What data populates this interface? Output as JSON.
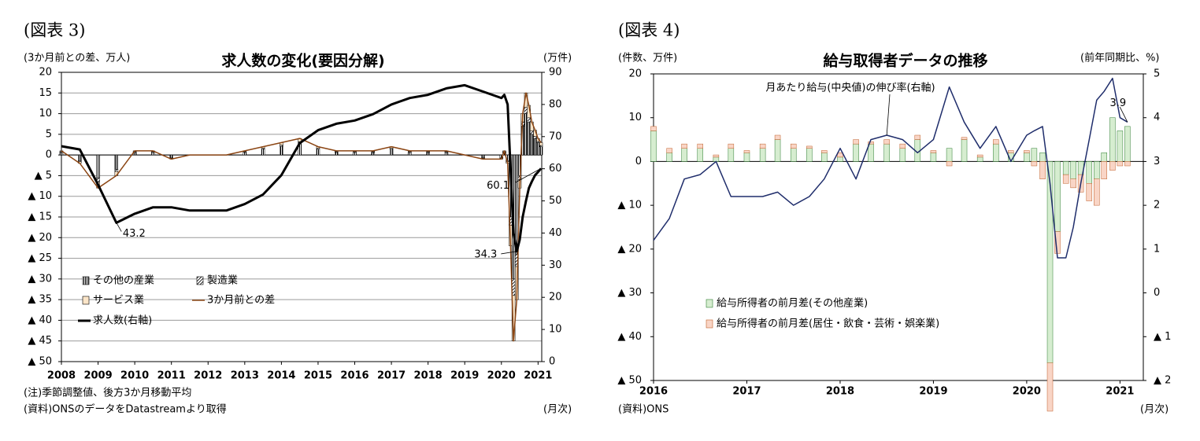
{
  "chart_data": [
    {
      "type": "bar",
      "figure_label": "(図表 3)",
      "title": "求人数の変化(要因分解)",
      "y_label": "(3か月前との差、万人)",
      "y2_label": "(万件)",
      "notes": "(注)季節調整値、後方3か月移動平均",
      "source": "(資料)ONSのデータをDatastreamより取得",
      "x_unit": "(月次)",
      "grid": true,
      "x": [
        2008,
        2008.5,
        2009,
        2009.5,
        2010,
        2010.5,
        2011,
        2011.5,
        2012,
        2012.5,
        2013,
        2013.5,
        2014,
        2014.5,
        2015,
        2015.5,
        2016,
        2016.5,
        2017,
        2017.5,
        2018,
        2018.5,
        2019,
        2019.5,
        2020,
        2020.08,
        2020.17,
        2020.25,
        2020.33,
        2020.42,
        2020.5,
        2020.58,
        2020.67,
        2020.75,
        2020.83,
        2020.92,
        2021,
        2021.08
      ],
      "xlim": [
        2008,
        2021.1
      ],
      "xticks": [
        2008,
        2009,
        2010,
        2011,
        2012,
        2013,
        2014,
        2015,
        2016,
        2017,
        2018,
        2019,
        2020,
        2021
      ],
      "ylim": [
        -50,
        20
      ],
      "yticks": [
        20,
        15,
        10,
        5,
        0,
        {
          "value": -5,
          "label": "▲ 5"
        },
        {
          "value": -10,
          "label": "▲ 10"
        },
        {
          "value": -15,
          "label": "▲ 15"
        },
        {
          "value": -20,
          "label": "▲ 20"
        },
        {
          "value": -25,
          "label": "▲ 25"
        },
        {
          "value": -30,
          "label": "▲ 30"
        },
        {
          "value": -35,
          "label": "▲ 35"
        },
        {
          "value": -40,
          "label": "▲ 40"
        },
        {
          "value": -45,
          "label": "▲ 45"
        },
        {
          "value": -50,
          "label": "▲ 50"
        }
      ],
      "y2lim": [
        0,
        90
      ],
      "y2ticks": [
        90,
        80,
        70,
        60,
        50,
        40,
        30,
        20,
        10,
        0
      ],
      "series": [
        {
          "name": "その他の産業",
          "type": "bar",
          "pattern": "vertical",
          "color": "#000000",
          "values": [
            0.7,
            -1.4,
            -5.6,
            -3.5,
            0.7,
            0.7,
            -0.7,
            0,
            0,
            0,
            0.7,
            1.4,
            2.1,
            2.8,
            1.4,
            0.7,
            0.7,
            0.7,
            1.4,
            0.7,
            0.7,
            0.7,
            0,
            -0.7,
            -0.7,
            0.7,
            -1.4,
            -15,
            -30,
            -24,
            -5,
            7,
            10,
            8,
            5,
            4,
            3,
            2
          ]
        },
        {
          "name": "製造業",
          "type": "bar",
          "pattern": "diagonal",
          "color": "#000000",
          "values": [
            0.1,
            -0.2,
            -1,
            -0.5,
            0.1,
            0.1,
            -0.1,
            0,
            0,
            0,
            0.1,
            0.2,
            0.3,
            0.4,
            0.2,
            0.1,
            0.1,
            0.1,
            0.2,
            0.1,
            0.1,
            0.1,
            0,
            -0.1,
            -0.1,
            0.1,
            -0.2,
            -2,
            -4,
            -3,
            -1,
            1,
            1.5,
            1,
            0.8,
            0.5,
            0.3,
            0.3
          ]
        },
        {
          "name": "サービス業",
          "type": "bar",
          "pattern": "solid",
          "color": "#fbe5c8",
          "values": [
            0.2,
            -0.4,
            -1.4,
            -1,
            0.2,
            0.2,
            -0.2,
            0,
            0,
            0,
            0.2,
            0.4,
            0.6,
            0.8,
            0.4,
            0.2,
            0.2,
            0.2,
            0.4,
            0.2,
            0.2,
            0.2,
            0,
            -0.2,
            -0.2,
            0.2,
            -0.4,
            -5,
            -11,
            -8,
            -2,
            2,
            3.5,
            3,
            2.2,
            1.5,
            0.7,
            0.7
          ]
        },
        {
          "name": "3か月前との差",
          "type": "line",
          "color": "#8b4513",
          "width": 1.5,
          "values": [
            1,
            -2,
            -8,
            -5,
            1,
            1,
            -1,
            0,
            0,
            0,
            1,
            2,
            3,
            4,
            2,
            1,
            1,
            1,
            2,
            1,
            1,
            1,
            0,
            -1,
            -1,
            1,
            -2,
            -22,
            -45,
            -35,
            -8,
            10,
            15,
            12,
            8,
            6,
            4,
            3
          ]
        },
        {
          "name": "求人数(右軸)",
          "type": "line",
          "axis": "y2",
          "color": "#000000",
          "width": 3,
          "values": [
            67,
            66,
            55,
            43.2,
            46,
            48,
            48,
            47,
            47,
            47,
            49,
            52,
            58,
            68,
            72,
            74,
            75,
            77,
            80,
            82,
            83,
            85,
            86,
            84,
            82,
            83,
            80,
            60,
            40,
            34.3,
            38,
            45,
            50,
            54,
            56,
            58,
            59,
            60.1
          ],
          "value_labels": [
            null,
            null,
            null,
            "43.2",
            null,
            null,
            null,
            null,
            null,
            null,
            null,
            null,
            null,
            null,
            null,
            null,
            null,
            null,
            null,
            null,
            null,
            null,
            null,
            null,
            null,
            null,
            null,
            null,
            null,
            "34.3",
            null,
            null,
            null,
            null,
            null,
            null,
            null,
            "60.1"
          ]
        }
      ]
    },
    {
      "type": "bar",
      "figure_label": "(図表 4)",
      "title": "給与取得者データの推移",
      "y_label": "(件数、万件)",
      "y2_label": "(前年同期比、%)",
      "source": "(資料)ONS",
      "x_unit": "(月次)",
      "grid": false,
      "x": [
        2016,
        2016.17,
        2016.33,
        2016.5,
        2016.67,
        2016.83,
        2017,
        2017.17,
        2017.33,
        2017.5,
        2017.67,
        2017.83,
        2018,
        2018.17,
        2018.33,
        2018.5,
        2018.67,
        2018.83,
        2019,
        2019.17,
        2019.33,
        2019.5,
        2019.67,
        2019.83,
        2020,
        2020.08,
        2020.17,
        2020.25,
        2020.33,
        2020.42,
        2020.5,
        2020.58,
        2020.67,
        2020.75,
        2020.83,
        2020.92,
        2021,
        2021.08
      ],
      "xlim": [
        2016,
        2021.25
      ],
      "xticks": [
        2016,
        2017,
        2018,
        2019,
        2020,
        2021
      ],
      "ylim": [
        -50,
        20
      ],
      "yticks": [
        20,
        10,
        0,
        {
          "value": -10,
          "label": "▲ 10"
        },
        {
          "value": -20,
          "label": "▲ 20"
        },
        {
          "value": -30,
          "label": "▲ 30"
        },
        {
          "value": -40,
          "label": "▲ 40"
        },
        {
          "value": -50,
          "label": "▲ 50"
        }
      ],
      "y2lim": [
        -2,
        5
      ],
      "y2ticks": [
        5,
        4,
        3,
        2,
        1,
        0,
        {
          "value": -1,
          "label": "▲ 1"
        },
        {
          "value": -2,
          "label": "▲ 2"
        }
      ],
      "series": [
        {
          "name": "給与所得者の前月差(その他産業)",
          "type": "bar",
          "pattern": "solid",
          "color": "#d6edd0",
          "stroke": "#2e7d32",
          "values": [
            7,
            2,
            3,
            3,
            1,
            3,
            2,
            3,
            5,
            3,
            3,
            2,
            1,
            4,
            4,
            4,
            3,
            5,
            2,
            3,
            5,
            1,
            4,
            2,
            2,
            3,
            2,
            -46,
            -16,
            -3,
            -4,
            -3,
            -5,
            -4,
            2,
            10,
            7,
            8
          ]
        },
        {
          "name": "給与所得者の前月差(居住・飲食・芸術・娯楽業)",
          "type": "bar",
          "pattern": "solid",
          "color": "#f9d5c6",
          "stroke": "#c0602a",
          "values": [
            1,
            1,
            1,
            1,
            0.5,
            1,
            0.5,
            1,
            1,
            1,
            0.5,
            0.5,
            1,
            1,
            0.5,
            1,
            1,
            1,
            0.5,
            -1,
            0.5,
            0.5,
            1,
            0.5,
            0.5,
            -1,
            -4,
            -11,
            -5,
            -2,
            -2,
            -4,
            -4,
            -6,
            -4,
            -2,
            -1,
            -1
          ]
        },
        {
          "name": "月あたり給与(中央値)の伸び率(右軸)",
          "type": "line",
          "axis": "y2",
          "legend": false,
          "color": "#1f2d6b",
          "width": 1.5,
          "values": [
            1.2,
            1.7,
            2.6,
            2.7,
            3.0,
            2.2,
            2.2,
            2.2,
            2.3,
            2.0,
            2.2,
            2.6,
            3.3,
            2.6,
            3.5,
            3.6,
            3.5,
            3.2,
            3.5,
            4.7,
            3.9,
            3.3,
            3.8,
            3.0,
            3.6,
            3.7,
            3.8,
            2.5,
            0.8,
            0.8,
            1.5,
            2.5,
            3.5,
            4.4,
            4.6,
            4.9,
            4.0,
            3.9
          ],
          "value_labels": [
            null,
            null,
            null,
            null,
            null,
            null,
            null,
            null,
            null,
            null,
            null,
            null,
            null,
            null,
            null,
            null,
            null,
            null,
            null,
            null,
            null,
            null,
            null,
            null,
            null,
            null,
            null,
            null,
            null,
            null,
            null,
            null,
            null,
            null,
            null,
            null,
            null,
            "3.9"
          ]
        }
      ]
    }
  ]
}
